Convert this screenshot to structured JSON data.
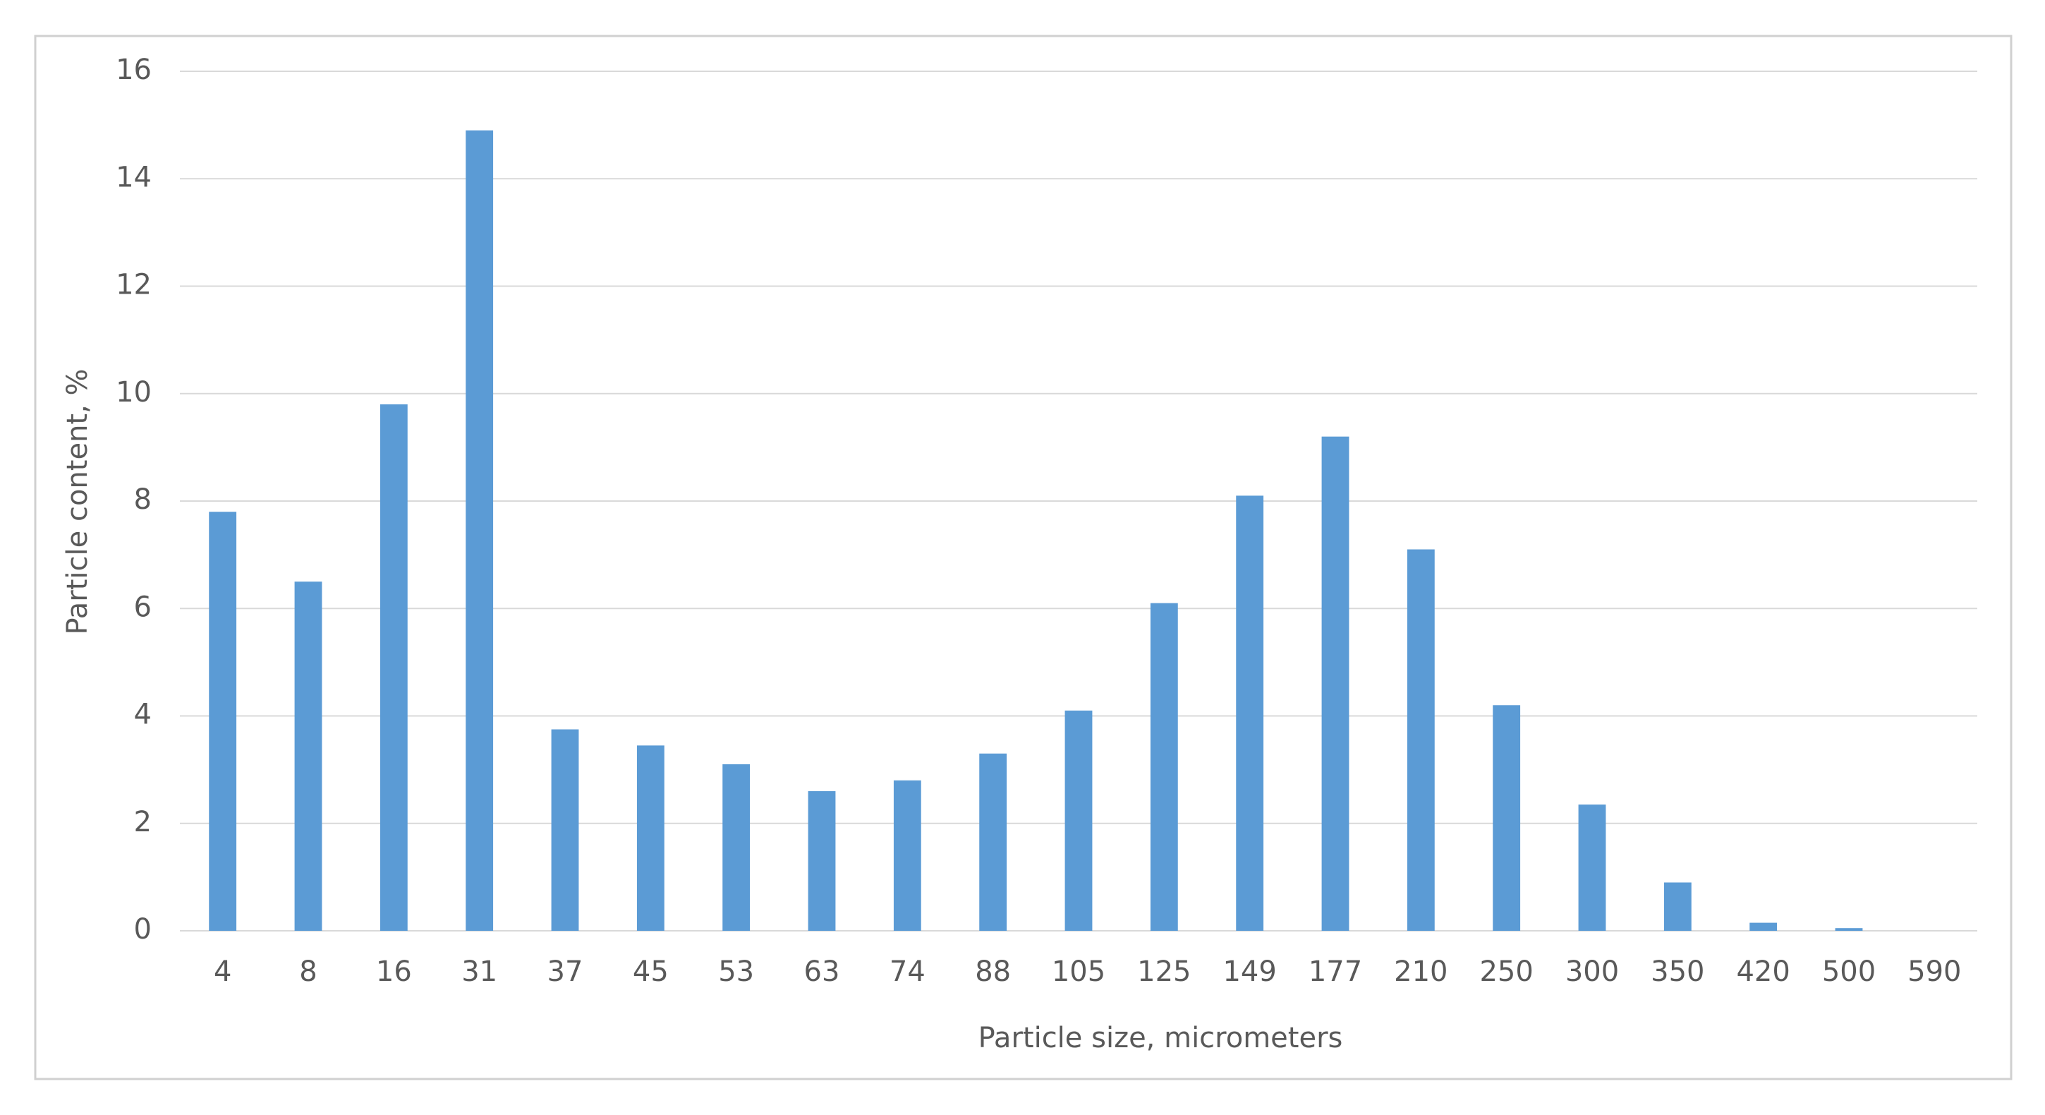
{
  "chart_data": {
    "type": "bar",
    "x_label": "Particle size, micrometers",
    "y_label": "Particle content, %",
    "categories": [
      "4",
      "8",
      "16",
      "31",
      "37",
      "45",
      "53",
      "63",
      "74",
      "88",
      "105",
      "125",
      "149",
      "177",
      "210",
      "250",
      "300",
      "350",
      "420",
      "500",
      "590"
    ],
    "values": [
      7.8,
      6.5,
      9.8,
      14.9,
      3.75,
      3.45,
      3.1,
      2.6,
      2.8,
      3.3,
      4.1,
      6.1,
      8.1,
      9.2,
      7.1,
      4.2,
      2.35,
      0.9,
      0.15,
      0.05,
      0
    ],
    "color": "#5b9bd5",
    "ylim": [
      0,
      16
    ],
    "yticks": [
      0,
      2,
      4,
      6,
      8,
      10,
      12,
      14,
      16
    ],
    "grid": true
  }
}
